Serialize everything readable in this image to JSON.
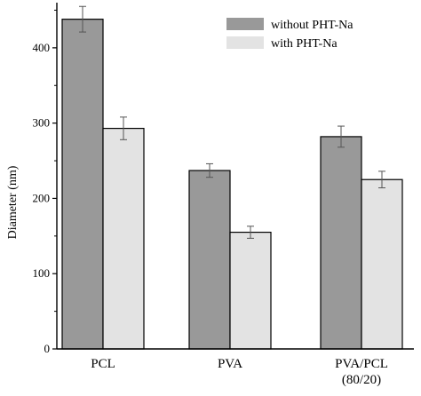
{
  "chart_data": {
    "type": "bar",
    "ylabel": "Diameter (nm)",
    "xlabel": "",
    "ylim": [
      0,
      460
    ],
    "yticks": [
      "0",
      "100",
      "200",
      "300",
      "400"
    ],
    "categories": [
      [
        "PCL"
      ],
      [
        "PVA"
      ],
      [
        "PVA/PCL",
        "(80/20)"
      ]
    ],
    "series": [
      {
        "name": "without PHT-Na",
        "color": "#999999",
        "values": [
          438,
          237,
          282
        ],
        "errors": [
          17,
          9,
          14
        ]
      },
      {
        "name": "with PHT-Na",
        "color": "#e3e3e3",
        "values": [
          293,
          155,
          225
        ],
        "errors": [
          15,
          8,
          11
        ]
      }
    ],
    "grid": false,
    "legend": "top-right"
  }
}
